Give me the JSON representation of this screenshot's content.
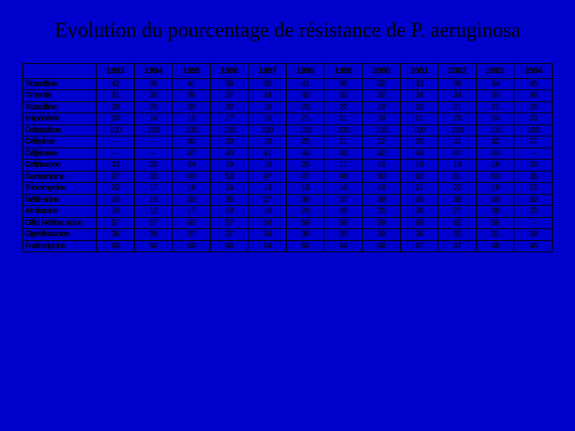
{
  "title": "Evolution du pourcentage de résistance de P. aeruginosa",
  "years": [
    "1993",
    "1994",
    "1995",
    "1996",
    "1997",
    "1998",
    "1999",
    "2000",
    "2001",
    "2002",
    "2003",
    "2004"
  ],
  "drugs": [
    "Ticarcilline",
    "Timentin",
    "Tazocilline",
    "Imipénème",
    "Ceftazidime",
    "Céfépime",
    "Céfpirome",
    "Ceftriaxone",
    "Gentamicine",
    "Tobramycine",
    "Nétilmicine",
    "Amikacine",
    "Cifla: Nétiloa: acine",
    "Ciprofloxacine",
    "Fosfomycine"
  ],
  "data": [
    [
      "42",
      "36",
      "41",
      "39",
      "35",
      "41",
      "35",
      "32",
      "33",
      "35",
      "34",
      "45"
    ],
    [
      "31",
      "30",
      "36",
      "37",
      "34",
      "40",
      "35",
      "32",
      "34",
      "34",
      "34",
      "46"
    ],
    [
      "29",
      "20",
      "20",
      "20",
      "19",
      "23",
      "22",
      "18",
      "22",
      "21",
      "21",
      "25"
    ],
    [
      "20",
      "16",
      "12",
      "17",
      "15",
      "21",
      "21",
      "18",
      "21",
      "23",
      "24",
      "23"
    ],
    [
      "100",
      "100",
      "100",
      "100",
      "100",
      "100",
      "100",
      "100",
      "100",
      "100",
      "100",
      "100"
    ],
    [
      "–",
      "–",
      "30",
      "29",
      "18",
      "25",
      "21",
      "22",
      "26",
      "31",
      "32",
      "37"
    ],
    [
      "–",
      "–",
      "47",
      "40",
      "41",
      "44",
      "43",
      "42",
      "46",
      "47",
      "44",
      "–"
    ],
    [
      "24",
      "20",
      "24",
      "19",
      "19",
      "25",
      "17",
      "15",
      "19",
      "19",
      "18",
      "25"
    ],
    [
      "37",
      "33",
      "49",
      "53",
      "47",
      "47",
      "48",
      "50",
      "62",
      "61",
      "56",
      "36"
    ],
    [
      "20",
      "17",
      "16",
      "16",
      "13",
      "15",
      "16",
      "18",
      "21",
      "22",
      "19",
      "22"
    ],
    [
      "24",
      "16",
      "33",
      "35",
      "37",
      "36",
      "37",
      "38",
      "45",
      "39",
      "49",
      "42"
    ],
    [
      "16",
      "12",
      "17",
      "19",
      "16",
      "23",
      "26",
      "25",
      "26",
      "27",
      "28",
      "25"
    ],
    [
      "57",
      "57",
      "60",
      "57",
      "54",
      "58",
      "58",
      "59",
      "66",
      "62",
      "56",
      "–"
    ],
    [
      "38",
      "39",
      "37",
      "37",
      "34",
      "36",
      "30",
      "30",
      "36",
      "32",
      "31",
      "38"
    ],
    [
      "59",
      "56",
      "59",
      "60",
      "54",
      "56",
      "66",
      "68",
      "67",
      "67",
      "48",
      "45"
    ]
  ],
  "colors": {
    "background": "#0000cc",
    "text": "#000000",
    "border": "#000000"
  },
  "title_fontsize": 26,
  "table_fontsize": 10
}
